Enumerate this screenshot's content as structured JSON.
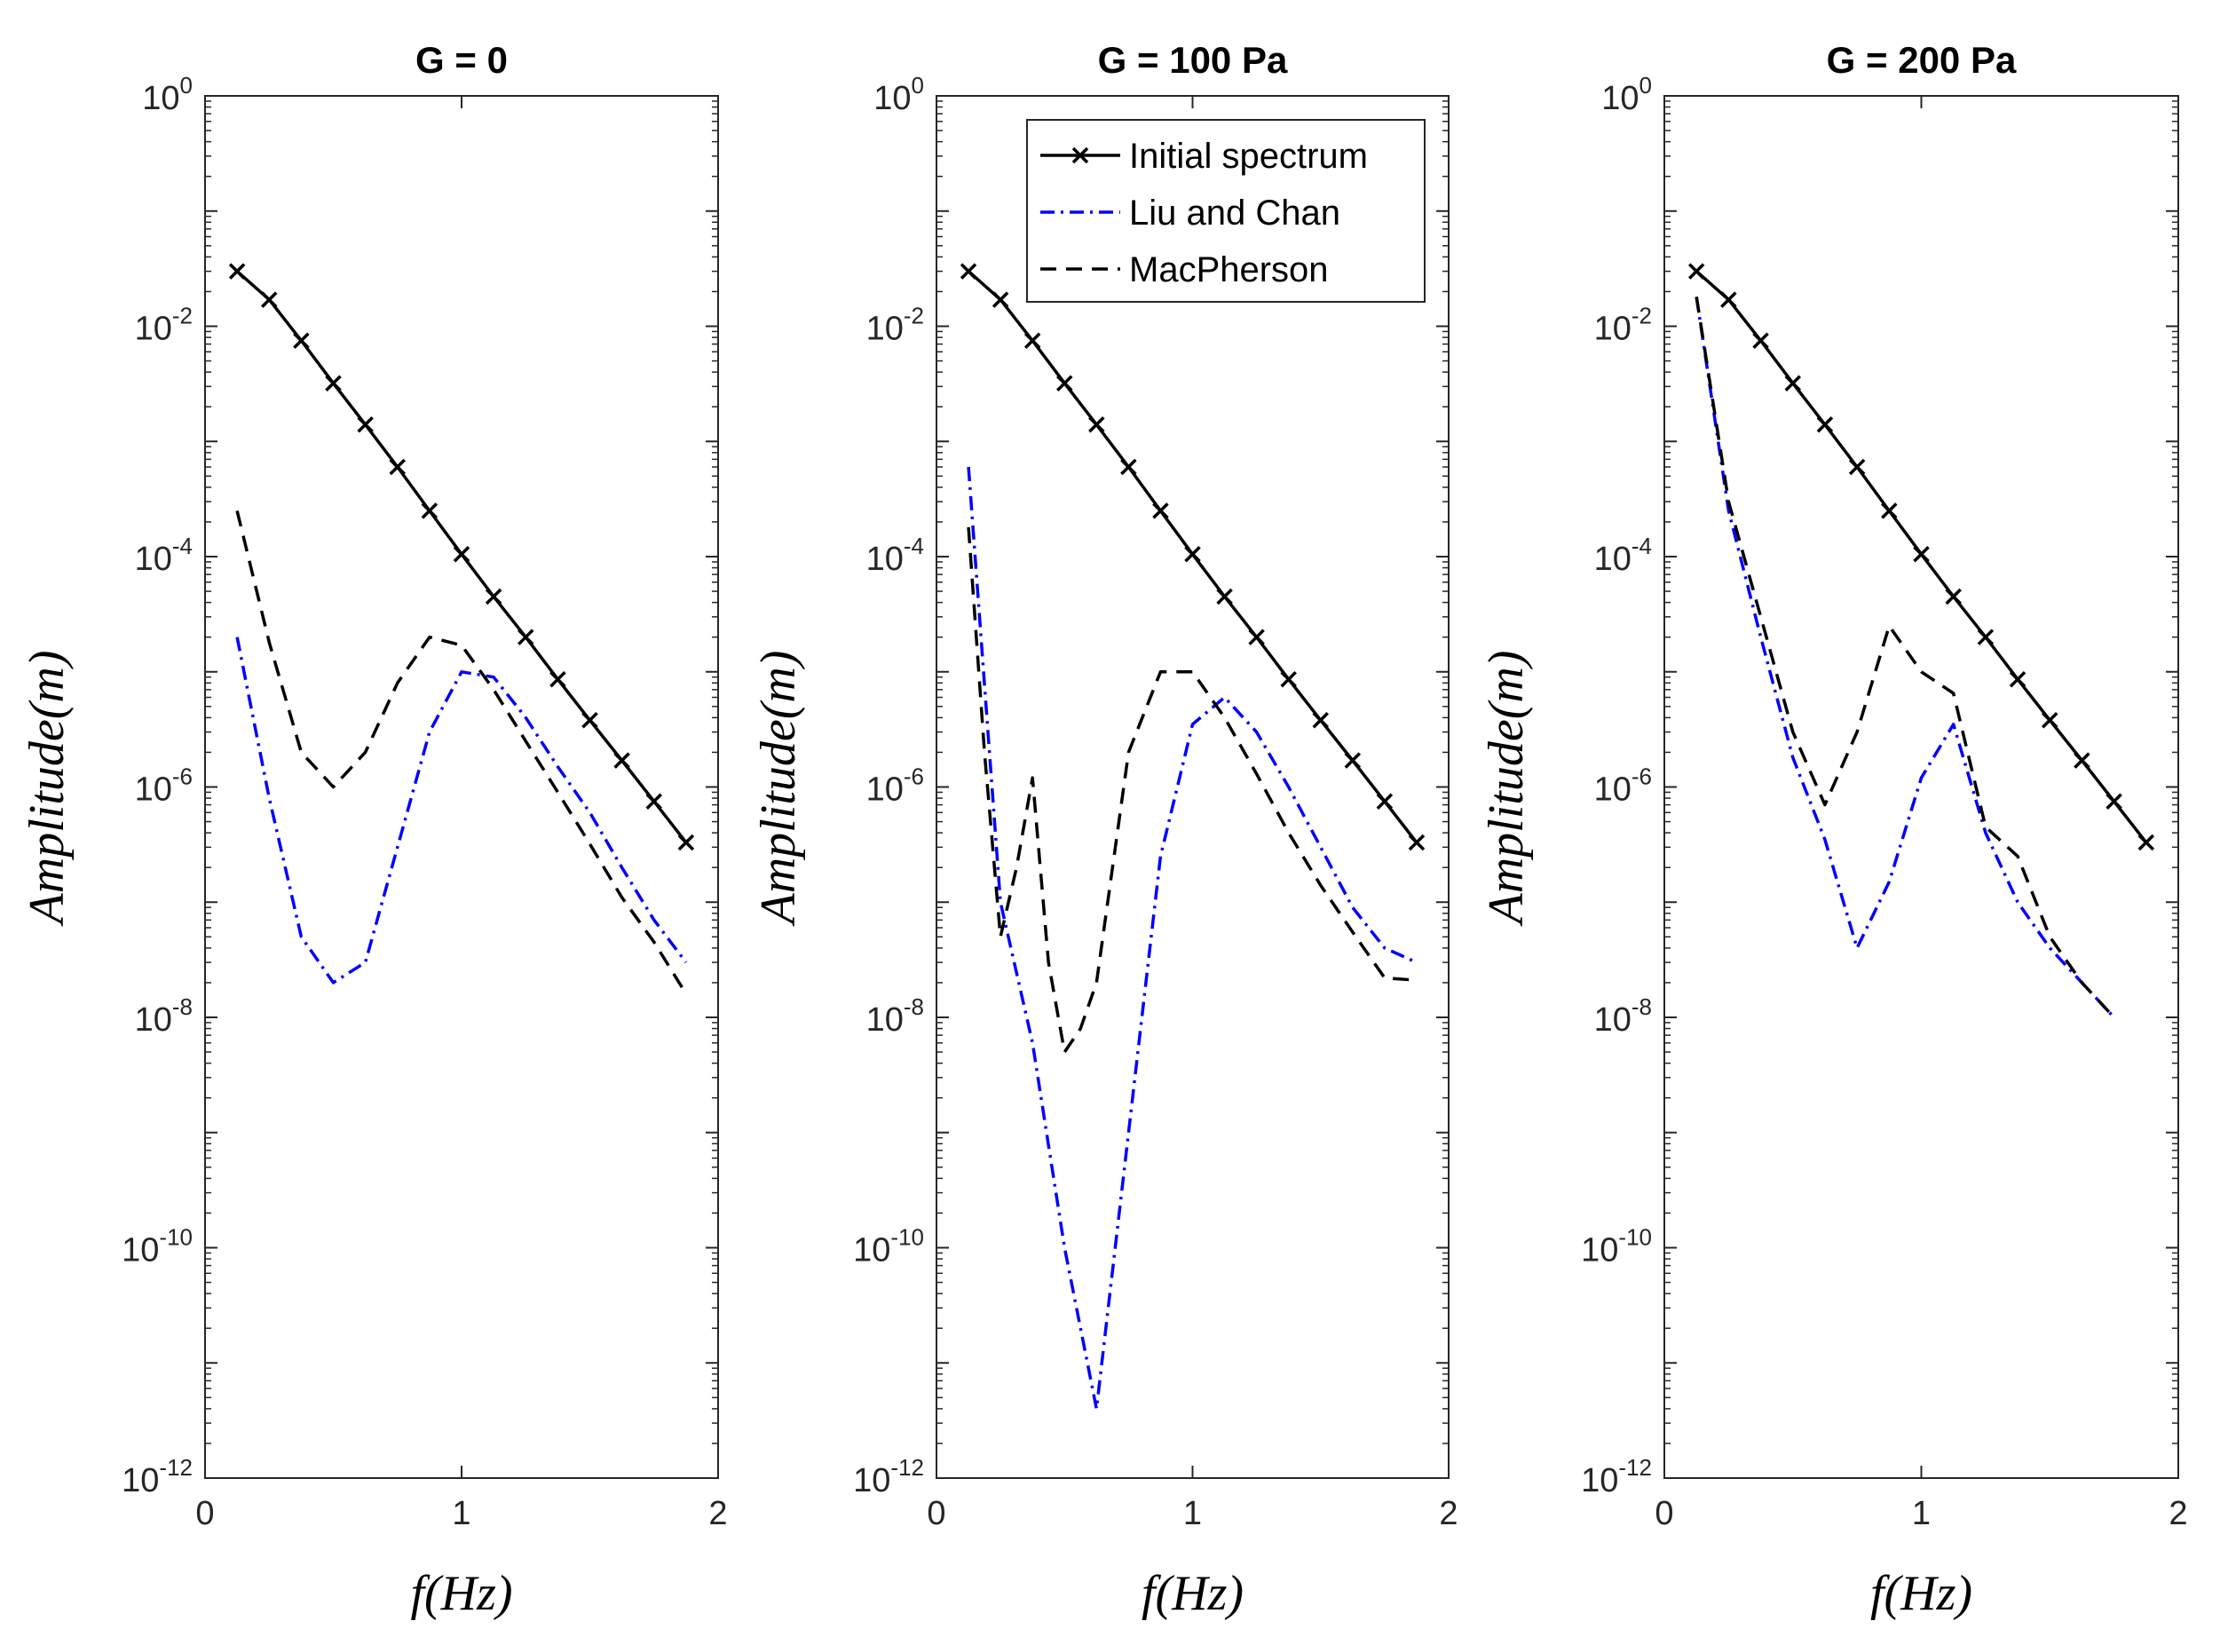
{
  "figure": {
    "legend": {
      "entries": [
        "Initial spectrum",
        "Liu and Chan",
        "MacPherson"
      ]
    }
  },
  "chart_data": [
    {
      "type": "line",
      "title": "G = 0",
      "xlabel": "f(Hz)",
      "ylabel": "Amplitude(m)",
      "yscale": "log",
      "xlim": [
        0,
        2
      ],
      "ylim": [
        1e-12,
        1
      ],
      "xticks": [
        "0",
        "1",
        "2"
      ],
      "yticks": [
        {
          "base": "10",
          "exp": "0"
        },
        {
          "base": "10",
          "exp": "-2"
        },
        {
          "base": "10",
          "exp": "-4"
        },
        {
          "base": "10",
          "exp": "-6"
        },
        {
          "base": "10",
          "exp": "-8"
        },
        {
          "base": "10",
          "exp": "-10"
        },
        {
          "base": "10",
          "exp": "-12"
        }
      ],
      "series": [
        {
          "name": "Initial spectrum",
          "color": "#000000",
          "style": "solid-x",
          "x": [
            0.125,
            0.25,
            0.375,
            0.5,
            0.625,
            0.75,
            0.875,
            1.0,
            1.125,
            1.25,
            1.375,
            1.5,
            1.625,
            1.75,
            1.875
          ],
          "y": [
            0.03,
            0.017,
            0.0075,
            0.0032,
            0.0014,
            0.0006,
            0.00025,
            0.000105,
            4.5e-05,
            2e-05,
            8.6e-06,
            3.8e-06,
            1.7e-06,
            7.5e-07,
            3.3e-07
          ]
        },
        {
          "name": "Liu and Chan",
          "color": "#0000ff",
          "style": "dashdot",
          "x": [
            0.125,
            0.25,
            0.375,
            0.5,
            0.625,
            0.75,
            0.875,
            1.0,
            1.125,
            1.25,
            1.375,
            1.5,
            1.625,
            1.75,
            1.875
          ],
          "y": [
            2e-05,
            8e-07,
            5e-08,
            2e-08,
            3e-08,
            3e-07,
            3e-06,
            1e-05,
            9e-06,
            4e-06,
            1.5e-06,
            6e-07,
            2e-07,
            7e-08,
            3e-08
          ]
        },
        {
          "name": "MacPherson",
          "color": "#000000",
          "style": "dashed",
          "x": [
            0.125,
            0.25,
            0.375,
            0.5,
            0.625,
            0.75,
            0.875,
            1.0,
            1.125,
            1.25,
            1.375,
            1.5,
            1.625,
            1.75,
            1.875
          ],
          "y": [
            0.00025,
            1.8e-05,
            2e-06,
            1e-06,
            2e-06,
            8e-06,
            2e-05,
            1.7e-05,
            7e-06,
            2.5e-06,
            9e-07,
            3.2e-07,
            1.1e-07,
            4.5e-08,
            1.6e-08
          ]
        }
      ]
    },
    {
      "type": "line",
      "title": "G = 100 Pa",
      "xlabel": "f(Hz)",
      "ylabel": "Amplitude(m)",
      "yscale": "log",
      "xlim": [
        0,
        2
      ],
      "ylim": [
        1e-12,
        1
      ],
      "xticks": [
        "0",
        "1",
        "2"
      ],
      "yticks": [
        {
          "base": "10",
          "exp": "0"
        },
        {
          "base": "10",
          "exp": "-2"
        },
        {
          "base": "10",
          "exp": "-4"
        },
        {
          "base": "10",
          "exp": "-6"
        },
        {
          "base": "10",
          "exp": "-8"
        },
        {
          "base": "10",
          "exp": "-10"
        },
        {
          "base": "10",
          "exp": "-12"
        }
      ],
      "series": [
        {
          "name": "Initial spectrum",
          "color": "#000000",
          "style": "solid-x",
          "x": [
            0.125,
            0.25,
            0.375,
            0.5,
            0.625,
            0.75,
            0.875,
            1.0,
            1.125,
            1.25,
            1.375,
            1.5,
            1.625,
            1.75,
            1.875
          ],
          "y": [
            0.03,
            0.017,
            0.0075,
            0.0032,
            0.0014,
            0.0006,
            0.00025,
            0.000105,
            4.5e-05,
            2e-05,
            8.6e-06,
            3.8e-06,
            1.7e-06,
            7.5e-07,
            3.3e-07
          ]
        },
        {
          "name": "Liu and Chan",
          "color": "#0000ff",
          "style": "dashdot",
          "x": [
            0.125,
            0.25,
            0.375,
            0.5,
            0.625,
            0.75,
            0.875,
            1.0,
            1.125,
            1.25,
            1.375,
            1.5,
            1.625,
            1.75,
            1.875
          ],
          "y": [
            0.0006,
            1e-07,
            6e-09,
            1e-10,
            4e-12,
            1e-09,
            2.5e-07,
            3.5e-06,
            6e-06,
            3e-06,
            1e-06,
            3e-07,
            9e-08,
            4e-08,
            3e-08
          ]
        },
        {
          "name": "MacPherson",
          "color": "#000000",
          "style": "dashed",
          "x": [
            0.125,
            0.1875,
            0.25,
            0.3125,
            0.375,
            0.4375,
            0.5,
            0.5625,
            0.625,
            0.75,
            0.875,
            1.0,
            1.125,
            1.25,
            1.375,
            1.5,
            1.625,
            1.75,
            1.875
          ],
          "y": [
            0.00018,
            2e-06,
            5e-08,
            2e-07,
            1.2e-06,
            3e-08,
            5e-09,
            8e-09,
            2e-08,
            2e-06,
            1e-05,
            1e-05,
            4e-06,
            1.3e-06,
            4e-07,
            1.4e-07,
            5.5e-08,
            2.2e-08,
            2.1e-08
          ]
        }
      ]
    },
    {
      "type": "line",
      "title": "G = 200 Pa",
      "xlabel": "f(Hz)",
      "ylabel": "Amplitude(m)",
      "yscale": "log",
      "xlim": [
        0,
        2
      ],
      "ylim": [
        1e-12,
        1
      ],
      "xticks": [
        "0",
        "1",
        "2"
      ],
      "yticks": [
        {
          "base": "10",
          "exp": "0"
        },
        {
          "base": "10",
          "exp": "-2"
        },
        {
          "base": "10",
          "exp": "-4"
        },
        {
          "base": "10",
          "exp": "-6"
        },
        {
          "base": "10",
          "exp": "-8"
        },
        {
          "base": "10",
          "exp": "-10"
        },
        {
          "base": "10",
          "exp": "-12"
        }
      ],
      "series": [
        {
          "name": "Initial spectrum",
          "color": "#000000",
          "style": "solid-x",
          "x": [
            0.125,
            0.25,
            0.375,
            0.5,
            0.625,
            0.75,
            0.875,
            1.0,
            1.125,
            1.25,
            1.375,
            1.5,
            1.625,
            1.75,
            1.875
          ],
          "y": [
            0.03,
            0.017,
            0.0075,
            0.0032,
            0.0014,
            0.0006,
            0.00025,
            0.000105,
            4.5e-05,
            2e-05,
            8.6e-06,
            3.8e-06,
            1.7e-06,
            7.5e-07,
            3.3e-07
          ]
        },
        {
          "name": "Liu and Chan",
          "color": "#0000ff",
          "style": "dashdot",
          "x": [
            0.125,
            0.25,
            0.375,
            0.5,
            0.625,
            0.75,
            0.875,
            1.0,
            1.125,
            1.25,
            1.375,
            1.5,
            1.625,
            1.75
          ],
          "y": [
            0.018,
            0.00025,
            2e-05,
            1.8e-06,
            3.5e-07,
            4e-08,
            1.5e-07,
            1.2e-06,
            3.5e-06,
            4e-07,
            1e-07,
            4e-08,
            2e-08,
            1e-08
          ]
        },
        {
          "name": "MacPherson",
          "color": "#000000",
          "style": "dashed",
          "x": [
            0.125,
            0.25,
            0.375,
            0.5,
            0.625,
            0.75,
            0.875,
            1.0,
            1.125,
            1.25,
            1.375,
            1.5,
            1.625,
            1.75
          ],
          "y": [
            0.018,
            0.0003,
            3e-05,
            3e-06,
            7e-07,
            3e-06,
            2.5e-05,
            1e-05,
            6.5e-06,
            4.5e-07,
            2.5e-07,
            5e-08,
            2e-08,
            1e-08
          ]
        }
      ]
    }
  ]
}
